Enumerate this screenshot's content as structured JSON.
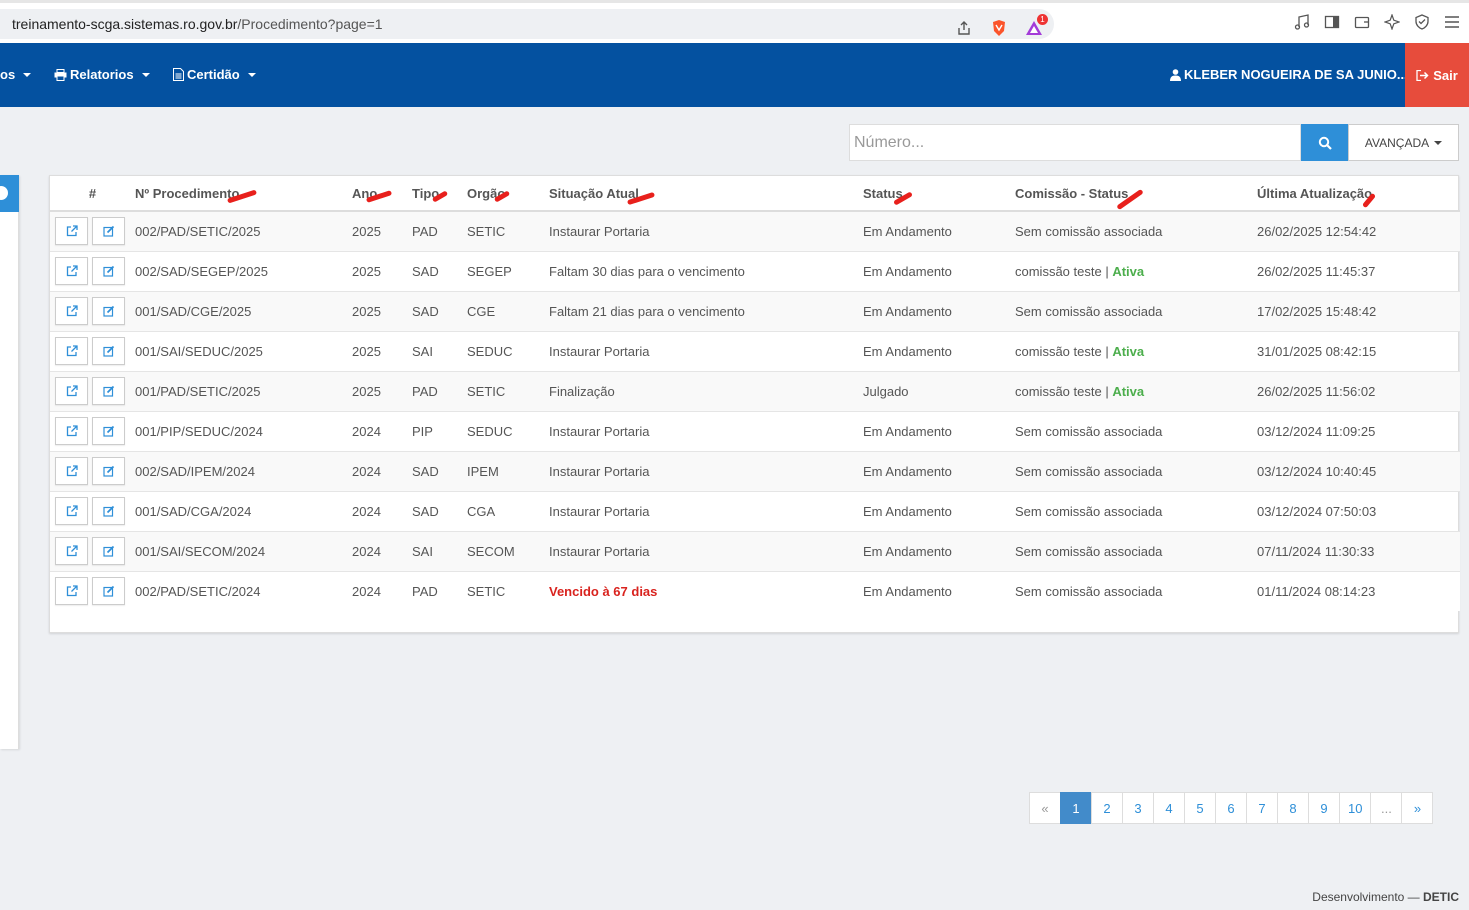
{
  "browser": {
    "url_host": "treinamento-scga.sistemas.ro.gov.br",
    "url_path": "/Procedimento?page=1",
    "notification_count": "1"
  },
  "navbar": {
    "partial_menu": "os",
    "relatorios": "Relatorios",
    "certidao": "Certidão",
    "user_name": "KLEBER NOGUEIRA DE SA JUNIO...",
    "logout": "Sair"
  },
  "search": {
    "placeholder": "Número...",
    "advanced_label": "AVANÇADA"
  },
  "table": {
    "headers": {
      "hash": "#",
      "numero": "Nº Procedimento",
      "ano": "Ano",
      "tipo": "Tipo",
      "orgao": "Orgão",
      "situacao": "Situação Atual",
      "status": "Status",
      "comissao": "Comissão - Status",
      "atualizacao": "Última Atualização"
    },
    "rows": [
      {
        "numero": "002/PAD/SETIC/2025",
        "ano": "2025",
        "tipo": "PAD",
        "orgao": "SETIC",
        "situacao": "Instaurar Portaria",
        "status": "Em Andamento",
        "comissao": "Sem comissão associada",
        "comissao_status": "",
        "atualizacao": "26/02/2025 12:54:42"
      },
      {
        "numero": "002/SAD/SEGEP/2025",
        "ano": "2025",
        "tipo": "SAD",
        "orgao": "SEGEP",
        "situacao": "Faltam 30 dias para o vencimento",
        "status": "Em Andamento",
        "comissao": "comissão teste | ",
        "comissao_status": "Ativa",
        "atualizacao": "26/02/2025 11:45:37"
      },
      {
        "numero": "001/SAD/CGE/2025",
        "ano": "2025",
        "tipo": "SAD",
        "orgao": "CGE",
        "situacao": "Faltam 21 dias para o vencimento",
        "status": "Em Andamento",
        "comissao": "Sem comissão associada",
        "comissao_status": "",
        "atualizacao": "17/02/2025 15:48:42"
      },
      {
        "numero": "001/SAI/SEDUC/2025",
        "ano": "2025",
        "tipo": "SAI",
        "orgao": "SEDUC",
        "situacao": "Instaurar Portaria",
        "status": "Em Andamento",
        "comissao": "comissão teste | ",
        "comissao_status": "Ativa",
        "atualizacao": "31/01/2025 08:42:15"
      },
      {
        "numero": "001/PAD/SETIC/2025",
        "ano": "2025",
        "tipo": "PAD",
        "orgao": "SETIC",
        "situacao": "Finalização",
        "status": "Julgado",
        "comissao": "comissão teste | ",
        "comissao_status": "Ativa",
        "atualizacao": "26/02/2025 11:56:02"
      },
      {
        "numero": "001/PIP/SEDUC/2024",
        "ano": "2024",
        "tipo": "PIP",
        "orgao": "SEDUC",
        "situacao": "Instaurar Portaria",
        "status": "Em Andamento",
        "comissao": "Sem comissão associada",
        "comissao_status": "",
        "atualizacao": "03/12/2024 11:09:25"
      },
      {
        "numero": "002/SAD/IPEM/2024",
        "ano": "2024",
        "tipo": "SAD",
        "orgao": "IPEM",
        "situacao": "Instaurar Portaria",
        "status": "Em Andamento",
        "comissao": "Sem comissão associada",
        "comissao_status": "",
        "atualizacao": "03/12/2024 10:40:45"
      },
      {
        "numero": "001/SAD/CGA/2024",
        "ano": "2024",
        "tipo": "SAD",
        "orgao": "CGA",
        "situacao": "Instaurar Portaria",
        "status": "Em Andamento",
        "comissao": "Sem comissão associada",
        "comissao_status": "",
        "atualizacao": "03/12/2024 07:50:03"
      },
      {
        "numero": "001/SAI/SECOM/2024",
        "ano": "2024",
        "tipo": "SAI",
        "orgao": "SECOM",
        "situacao": "Instaurar Portaria",
        "status": "Em Andamento",
        "comissao": "Sem comissão associada",
        "comissao_status": "",
        "atualizacao": "07/11/2024 11:30:33"
      },
      {
        "numero": "002/PAD/SETIC/2024",
        "ano": "2024",
        "tipo": "PAD",
        "orgao": "SETIC",
        "situacao": "Vencido à 67 dias",
        "situacao_alert": true,
        "status": "Em Andamento",
        "comissao": "Sem comissão associada",
        "comissao_status": "",
        "atualizacao": "01/11/2024 08:14:23"
      }
    ]
  },
  "pagination": {
    "prev": "«",
    "pages": [
      "1",
      "2",
      "3",
      "4",
      "5",
      "6",
      "7",
      "8",
      "9",
      "10"
    ],
    "ellipsis": "...",
    "next": "»",
    "current": "1"
  },
  "footer": {
    "prefix": "Desenvolvimento — ",
    "brand": "DETIC"
  },
  "colors": {
    "navbar": "#0451a0",
    "primary": "#2e8fd8",
    "logout": "#e74c3c",
    "active_status": "#4cae4c",
    "alert": "#d9231e",
    "annotation_marks": "#e8201c"
  }
}
